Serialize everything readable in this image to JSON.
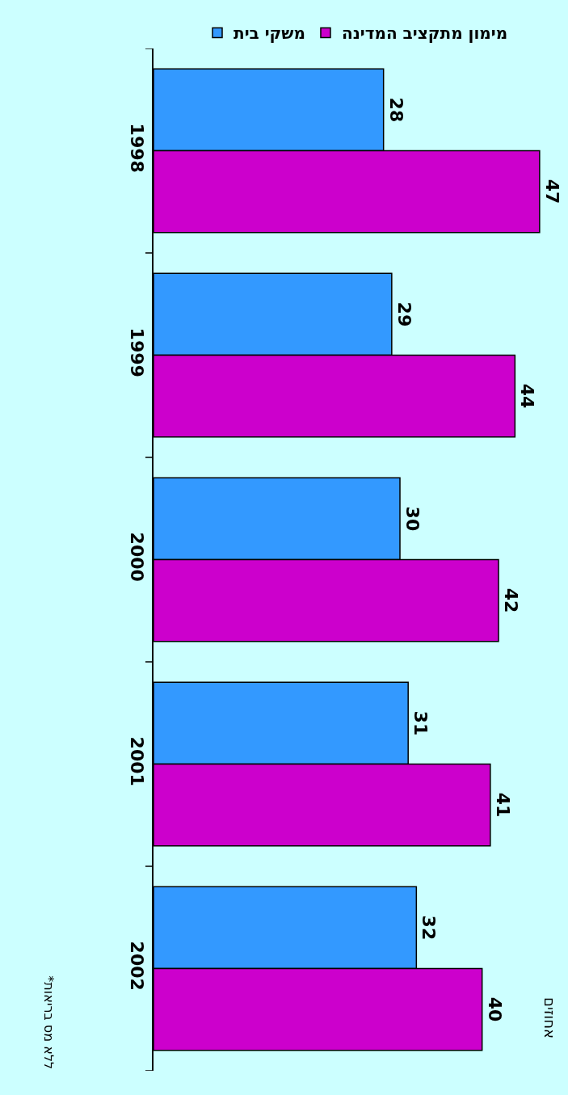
{
  "chart_data": {
    "type": "bar",
    "orientation": "horizontal",
    "ylabel": "אחוזים",
    "categories": [
      "1998",
      "1999",
      "2000",
      "2001",
      "2002"
    ],
    "series": [
      {
        "name": "משקי בית",
        "color": "#3399ff",
        "values": [
          28,
          29,
          30,
          31,
          32
        ]
      },
      {
        "name": "מימון מתקציב המדינה",
        "color": "#cc00cc",
        "values": [
          47,
          44,
          42,
          41,
          40
        ]
      }
    ],
    "data_labels": true,
    "legend": "top",
    "grid": false,
    "annotations": [
      "*ללא מס בריאות"
    ]
  }
}
